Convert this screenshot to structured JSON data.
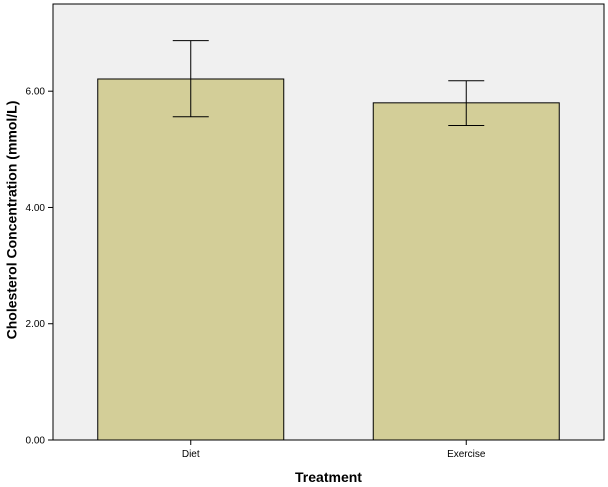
{
  "chart_data": {
    "type": "bar",
    "categories": [
      "Diet",
      "Exercise"
    ],
    "values": [
      6.21,
      5.8
    ],
    "error_bars": [
      {
        "low": 5.56,
        "high": 6.87
      },
      {
        "low": 5.41,
        "high": 6.18
      }
    ],
    "title": "",
    "xlabel": "Treatment",
    "ylabel": "Cholesterol Concentration (mmol/L)",
    "ylim": [
      0,
      7.5
    ],
    "yticks": [
      {
        "value": 0,
        "label": "0.00"
      },
      {
        "value": 2,
        "label": "2.00"
      },
      {
        "value": 4,
        "label": "4.00"
      },
      {
        "value": 6,
        "label": "6.00"
      }
    ],
    "grid": false,
    "colors": {
      "plot_background": "#f0f0f0",
      "bar_fill": "#d3ce98",
      "bar_stroke": "#000000",
      "axis": "#000000"
    }
  }
}
